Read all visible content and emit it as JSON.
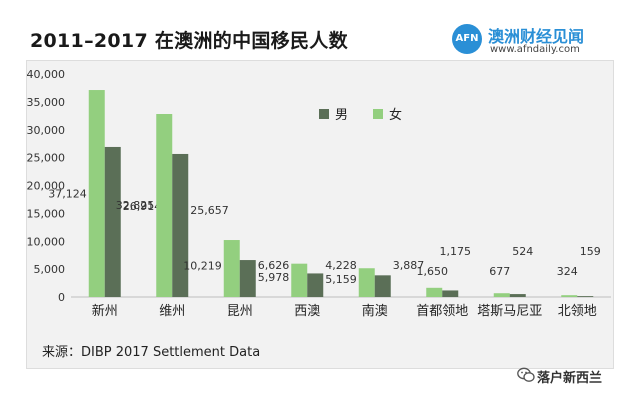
{
  "title": "2011–2017 在澳洲的中国移民人数",
  "brand": {
    "logo_text": "AFN",
    "name": "澳洲财经见闻",
    "url": "www.afndaily.com"
  },
  "source": "来源：DIBP 2017 Settlement Data",
  "footer": {
    "wechat_label": "落户新西兰",
    "icon": "wechat-icon"
  },
  "colors": {
    "male": "#5b6f57",
    "female": "#93cf7f",
    "axis_text": "#333333"
  },
  "chart_data": {
    "type": "bar",
    "categories": [
      "新州",
      "维州",
      "昆州",
      "西澳",
      "南澳",
      "首都领地",
      "塔斯马尼亚",
      "北领地"
    ],
    "series": [
      {
        "name": "女",
        "values": [
          37124,
          32825,
          10219,
          5978,
          5159,
          1650,
          677,
          324
        ]
      },
      {
        "name": "男",
        "values": [
          26914,
          25657,
          6626,
          4228,
          3887,
          1175,
          524,
          159
        ]
      }
    ],
    "ylim": [
      0,
      40000
    ],
    "yticks": [
      "0",
      "5,000",
      "10,000",
      "15,000",
      "20,000",
      "25,000",
      "30,000",
      "35,000",
      "40,000"
    ],
    "legend": {
      "items": [
        "男",
        "女"
      ],
      "position": "top-center"
    },
    "grid": false
  }
}
